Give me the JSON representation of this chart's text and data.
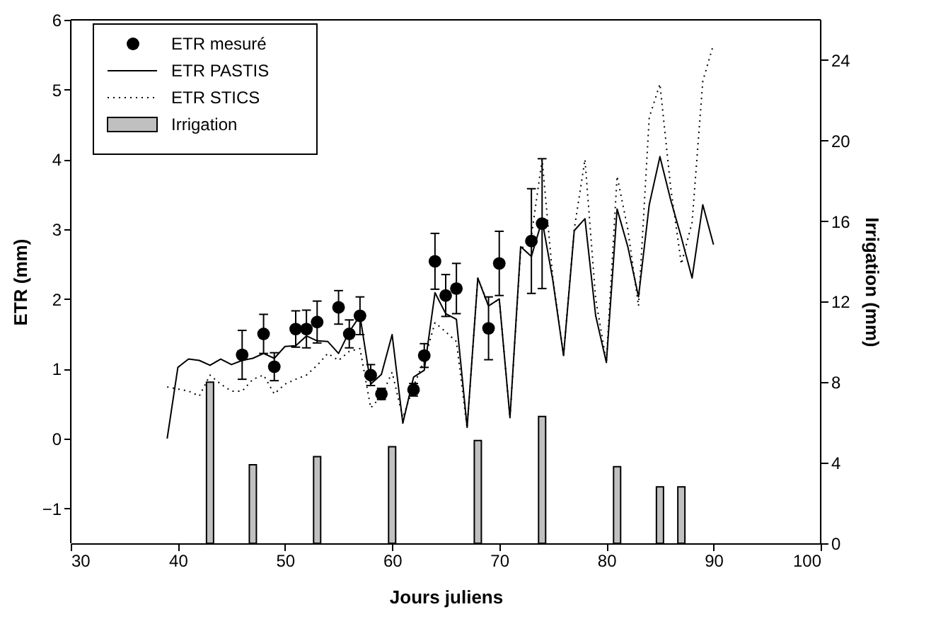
{
  "chart_data": {
    "type": "line",
    "xlabel": "Jours juliens",
    "ylabel": "ETR (mm)",
    "y2label": "Irrigation (mm)",
    "xlim": [
      30,
      100
    ],
    "xticks": [
      30,
      40,
      50,
      60,
      70,
      80,
      90,
      100
    ],
    "ylim": [
      -1.5,
      6
    ],
    "yticks": [
      -1,
      0,
      1,
      2,
      3,
      4,
      5,
      6
    ],
    "y2lim": [
      0,
      26
    ],
    "y2ticks": [
      0,
      4,
      8,
      12,
      16,
      20,
      24
    ],
    "grid": false,
    "legend": "top left",
    "series": [
      {
        "name": "ETR mesuré",
        "type": "scatter",
        "marker": "circle",
        "color": "#000000",
        "x": [
          46,
          48,
          49,
          51,
          52,
          53,
          55,
          56,
          57,
          58,
          59,
          62,
          63,
          64,
          65,
          66,
          69,
          70,
          73,
          74
        ],
        "values": [
          1.2,
          1.5,
          1.03,
          1.57,
          1.57,
          1.67,
          1.88,
          1.5,
          1.76,
          0.91,
          0.64,
          0.7,
          1.19,
          2.54,
          2.05,
          2.15,
          1.58,
          2.51,
          2.83,
          3.08
        ],
        "errors": [
          0.35,
          0.28,
          0.2,
          0.26,
          0.27,
          0.3,
          0.24,
          0.2,
          0.27,
          0.15,
          0.08,
          0.09,
          0.17,
          0.4,
          0.3,
          0.36,
          0.45,
          0.46,
          0.75,
          0.93
        ]
      },
      {
        "name": "ETR  PASTIS",
        "line_style": "solid",
        "color": "#000000",
        "x": [
          39,
          40,
          41,
          42,
          43,
          44,
          45,
          46,
          47,
          48,
          49,
          50,
          51,
          52,
          53,
          54,
          55,
          56,
          57,
          58,
          59,
          60,
          61,
          62,
          63,
          64,
          65,
          66,
          67,
          68,
          69,
          70,
          71,
          72,
          73,
          74,
          75,
          76,
          77,
          78,
          79,
          80,
          81,
          82,
          83,
          84,
          85,
          86,
          87,
          88,
          89,
          90
        ],
        "values": [
          0.0,
          1.02,
          1.14,
          1.12,
          1.05,
          1.14,
          1.06,
          1.12,
          1.15,
          1.22,
          1.15,
          1.32,
          1.33,
          1.47,
          1.4,
          1.39,
          1.22,
          1.53,
          1.76,
          0.78,
          0.92,
          1.49,
          0.22,
          0.88,
          0.98,
          2.09,
          1.79,
          1.71,
          0.16,
          2.3,
          1.9,
          2.0,
          0.3,
          2.75,
          2.61,
          3.13,
          2.27,
          1.19,
          2.98,
          3.15,
          1.76,
          1.09,
          3.29,
          2.75,
          2.03,
          3.35,
          4.04,
          3.42,
          2.88,
          2.3,
          3.35,
          2.78
        ]
      },
      {
        "name": "ETR STICS",
        "line_style": "dotted",
        "color": "#000000",
        "x": [
          39,
          40,
          41,
          42,
          43,
          44,
          45,
          46,
          47,
          48,
          49,
          50,
          51,
          52,
          53,
          54,
          55,
          56,
          57,
          58,
          59,
          60,
          61,
          62,
          63,
          64,
          65,
          66,
          67,
          68,
          69,
          70,
          71,
          72,
          73,
          74,
          75,
          76,
          77,
          78,
          79,
          80,
          81,
          82,
          83,
          84,
          85,
          86,
          87,
          88,
          89,
          90
        ],
        "values": [
          0.74,
          0.71,
          0.68,
          0.61,
          0.91,
          0.78,
          0.68,
          0.68,
          0.85,
          0.91,
          0.64,
          0.78,
          0.85,
          0.91,
          1.05,
          1.22,
          1.12,
          1.25,
          1.29,
          0.44,
          0.61,
          0.95,
          0.3,
          0.75,
          1.12,
          1.66,
          1.53,
          1.39,
          0.15,
          2.3,
          1.9,
          2.0,
          0.3,
          2.7,
          2.9,
          4.0,
          2.3,
          1.2,
          3.0,
          4.0,
          2.0,
          1.1,
          3.76,
          3.0,
          1.9,
          4.6,
          5.08,
          3.6,
          2.5,
          3.1,
          5.12,
          5.65
        ]
      },
      {
        "name": "Irrigation",
        "type": "bar",
        "axis": "y2",
        "color": "#c0c0c0",
        "x": [
          43,
          47,
          53,
          60,
          68,
          74,
          81,
          85,
          87
        ],
        "values": [
          8.0,
          3.9,
          4.3,
          4.8,
          5.1,
          6.3,
          3.8,
          2.8,
          2.8
        ]
      }
    ]
  }
}
